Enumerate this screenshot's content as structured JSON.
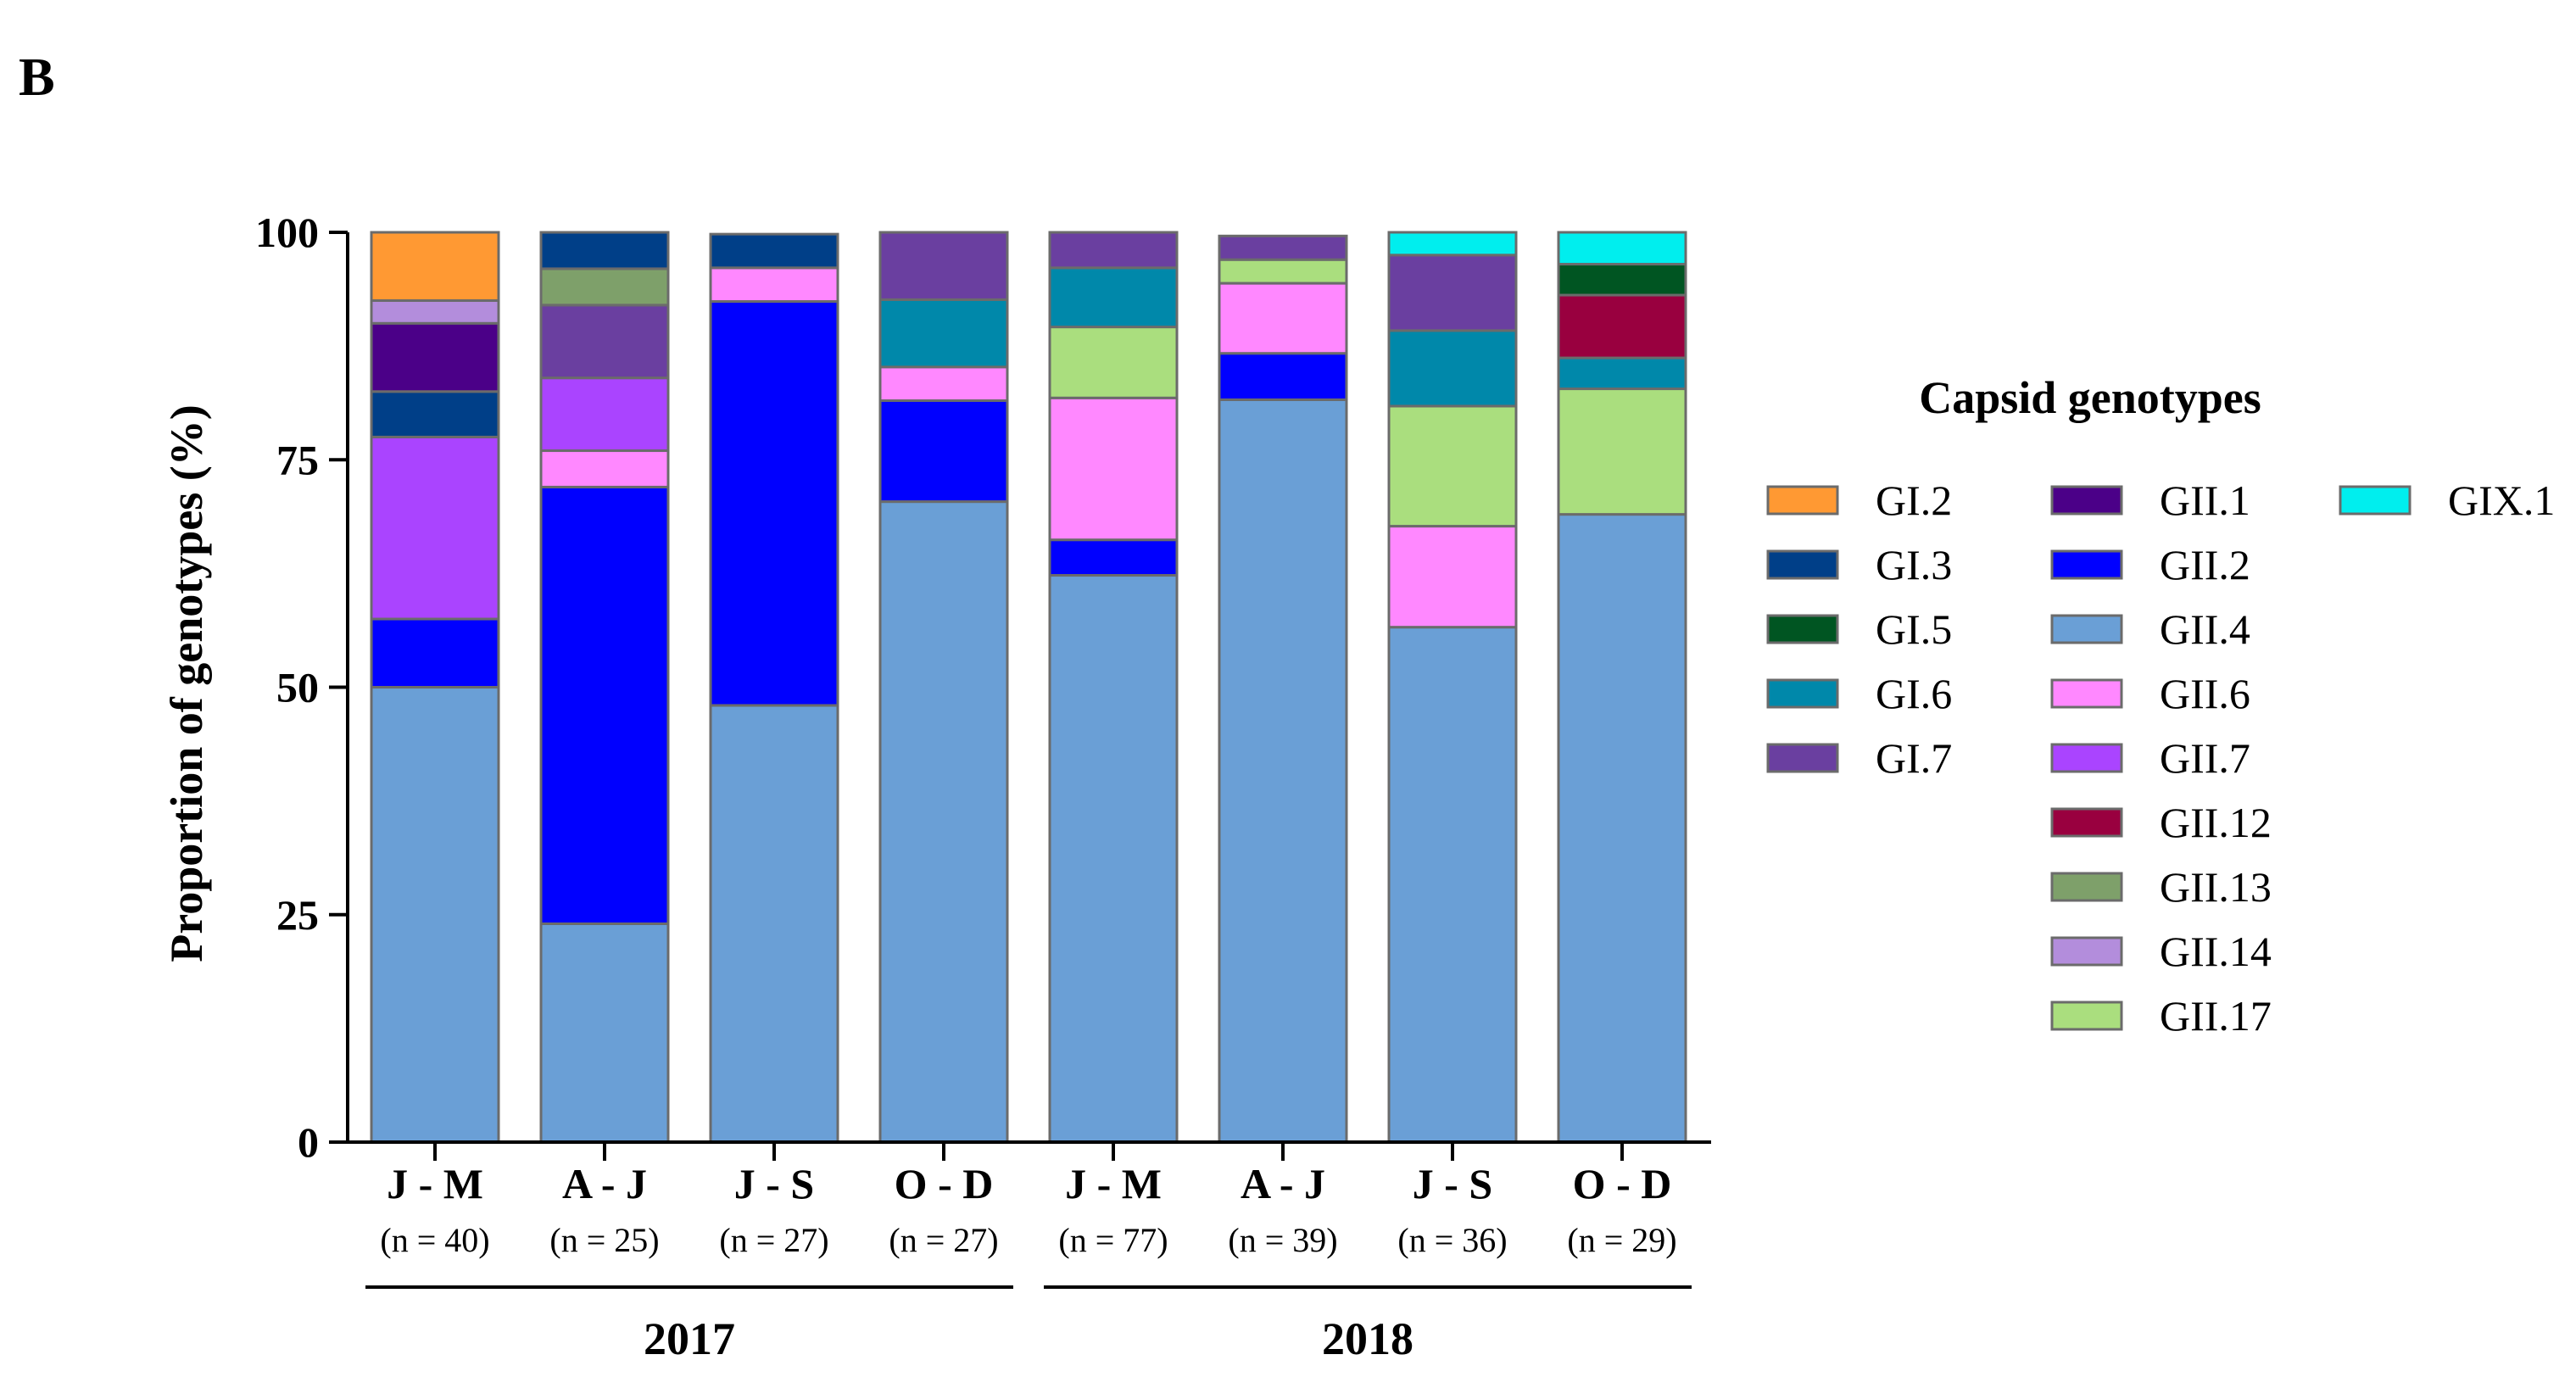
{
  "panel_label": "B",
  "chart_data": {
    "type": "bar",
    "stacked": true,
    "title": "",
    "xlabel": "",
    "ylabel": "Proportion of genotypes (%)",
    "ylim": [
      0,
      100
    ],
    "yticks": [
      "0",
      "25",
      "50",
      "75",
      "100"
    ],
    "categories": [
      "J - M",
      "A - J",
      "J - S",
      "O - D",
      "J - M",
      "A - J",
      "J - S",
      "O - D"
    ],
    "sample_sizes": [
      "(n = 40)",
      "(n = 25)",
      "(n = 27)",
      "(n = 27)",
      "(n = 77)",
      "(n = 39)",
      "(n = 36)",
      "(n = 29)"
    ],
    "groups": [
      {
        "label": "2017",
        "from": 0,
        "to": 3
      },
      {
        "label": "2018",
        "from": 4,
        "to": 7
      }
    ],
    "legend": {
      "title": "Capsid genotypes",
      "position": "right",
      "columns": [
        [
          "GI.2",
          "GI.3",
          "GI.5",
          "GI.6",
          "GI.7"
        ],
        [
          "GII.1",
          "GII.2",
          "GII.4",
          "GII.6",
          "GII.7",
          "GII.12",
          "GII.13",
          "GII.14",
          "GII.17"
        ],
        [
          "GIX.1"
        ]
      ]
    },
    "stack_order": [
      "GII.4",
      "GII.2",
      "GII.6",
      "GII.7",
      "GII.17",
      "GI.6",
      "GI.7",
      "GII.13",
      "GI.3",
      "GII.1",
      "GII.14",
      "GII.12",
      "GI.5",
      "GIX.1",
      "GI.2"
    ],
    "series": [
      {
        "name": "GII.4",
        "color": "#6a9fd6",
        "values": [
          50,
          24,
          48,
          70.4,
          62.3,
          81.6,
          56.6,
          69
        ]
      },
      {
        "name": "GII.2",
        "color": "#0000ff",
        "values": [
          7.5,
          48,
          44.4,
          11.1,
          3.9,
          5.1,
          0,
          0
        ]
      },
      {
        "name": "GII.6",
        "color": "#ff88ff",
        "values": [
          0,
          4,
          3.7,
          3.7,
          15.6,
          7.7,
          11.1,
          0
        ]
      },
      {
        "name": "GII.7",
        "color": "#aa44ff",
        "values": [
          20,
          8,
          0,
          0,
          0,
          0,
          0,
          0
        ]
      },
      {
        "name": "GII.17",
        "color": "#aade7e",
        "values": [
          0,
          0,
          0,
          0,
          7.8,
          2.6,
          13.2,
          13.8
        ]
      },
      {
        "name": "GI.6",
        "color": "#0088aa",
        "values": [
          0,
          0,
          0,
          7.4,
          6.5,
          0,
          8.3,
          3.4
        ]
      },
      {
        "name": "GI.7",
        "color": "#6a3fa0",
        "values": [
          0,
          8,
          0,
          7.4,
          3.9,
          2.6,
          8.3,
          0
        ]
      },
      {
        "name": "GII.13",
        "color": "#7ea06a",
        "values": [
          0,
          4,
          0,
          0,
          0,
          0,
          0,
          0
        ]
      },
      {
        "name": "GI.3",
        "color": "#003f88",
        "values": [
          5,
          4,
          3.7,
          0,
          0,
          0,
          0,
          0
        ]
      },
      {
        "name": "GII.1",
        "color": "#4b0088",
        "values": [
          7.5,
          0,
          0,
          0,
          0,
          0,
          0,
          0
        ]
      },
      {
        "name": "GII.14",
        "color": "#b38ddc",
        "values": [
          2.5,
          0,
          0,
          0,
          0,
          0,
          0,
          0
        ]
      },
      {
        "name": "GII.12",
        "color": "#99003f",
        "values": [
          0,
          0,
          0,
          0,
          0,
          0,
          0,
          6.9
        ]
      },
      {
        "name": "GI.5",
        "color": "#005522",
        "values": [
          0,
          0,
          0,
          0,
          0,
          0,
          0,
          3.4
        ]
      },
      {
        "name": "GIX.1",
        "color": "#00eeee",
        "values": [
          0,
          0,
          0,
          0,
          0,
          0,
          2.5,
          3.5
        ]
      },
      {
        "name": "GI.2",
        "color": "#ff9933",
        "values": [
          7.5,
          0,
          0,
          0,
          0,
          0,
          0,
          0
        ]
      }
    ]
  }
}
